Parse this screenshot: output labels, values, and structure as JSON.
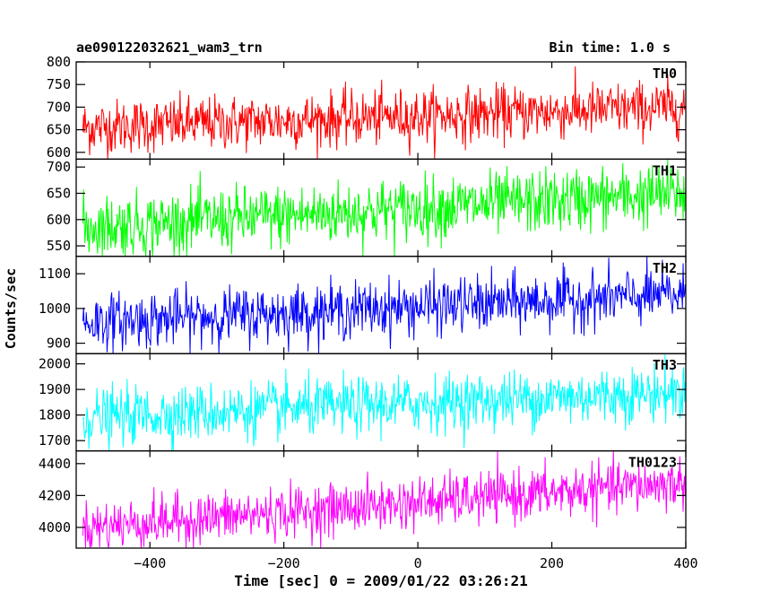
{
  "header": {
    "title": "ae090122032621_wam3_trn",
    "bin_time": "Bin time: 1.0 s"
  },
  "chart_data": {
    "type": "line",
    "x_range": [
      -510,
      400
    ],
    "xlabel": "Time [sec] 0 = 2009/01/22 03:26:21",
    "ylabel": "Counts/sec",
    "x_ticks": [
      -400,
      -200,
      0,
      200,
      400
    ],
    "x_tick_labels": [
      "−400",
      "−200",
      "0",
      "200",
      "400"
    ],
    "grid": false,
    "series": [
      {
        "name": "TH0",
        "color": "#ff0000",
        "ylim": [
          585,
          800
        ],
        "y_ticks": [
          600,
          650,
          700,
          750,
          800
        ],
        "trend_start": 655,
        "trend_end": 700,
        "noise_sigma": 30
      },
      {
        "name": "TH1",
        "color": "#00ff00",
        "ylim": [
          530,
          715
        ],
        "y_ticks": [
          550,
          600,
          650,
          700
        ],
        "trend_start": 585,
        "trend_end": 650,
        "noise_sigma": 30
      },
      {
        "name": "TH2",
        "color": "#0000ff",
        "ylim": [
          870,
          1150
        ],
        "y_ticks": [
          900,
          1000,
          1100
        ],
        "trend_start": 960,
        "trend_end": 1040,
        "noise_sigma": 40
      },
      {
        "name": "TH3",
        "color": "#00ffff",
        "ylim": [
          1660,
          2040
        ],
        "y_ticks": [
          1700,
          1800,
          1900,
          2000
        ],
        "trend_start": 1790,
        "trend_end": 1890,
        "noise_sigma": 55
      },
      {
        "name": "TH0123",
        "color": "#ff00ff",
        "ylim": [
          3870,
          4480
        ],
        "y_ticks": [
          4000,
          4200,
          4400
        ],
        "trend_start": 4000,
        "trend_end": 4280,
        "noise_sigma": 80
      }
    ]
  }
}
